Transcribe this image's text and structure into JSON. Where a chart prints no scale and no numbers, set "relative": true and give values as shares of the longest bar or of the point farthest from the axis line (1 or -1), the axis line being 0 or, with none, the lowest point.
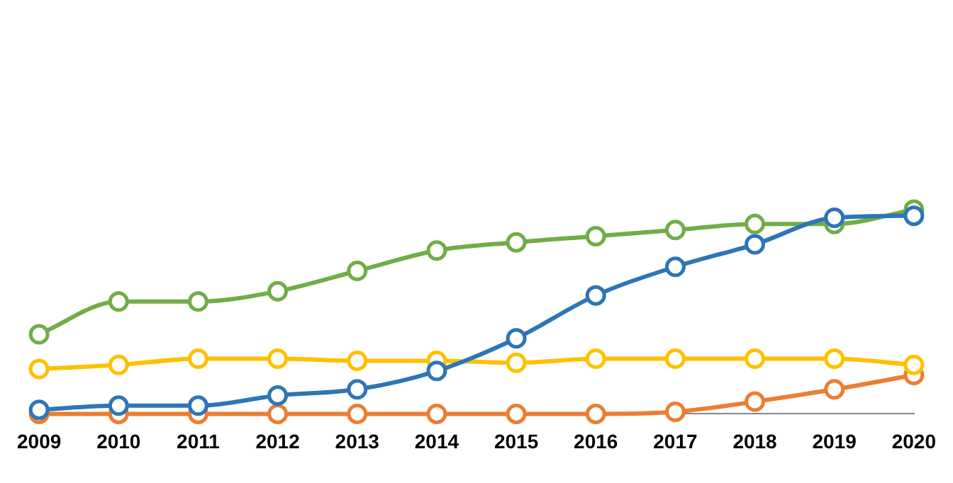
{
  "chart_data": {
    "type": "line",
    "relative": true,
    "categories": [
      "2009",
      "2010",
      "2011",
      "2012",
      "2013",
      "2014",
      "2015",
      "2016",
      "2017",
      "2018",
      "2019",
      "2020"
    ],
    "series": [
      {
        "color": "#2e75b6",
        "values": [
          0.02,
          0.04,
          0.04,
          0.09,
          0.12,
          0.21,
          0.37,
          0.58,
          0.72,
          0.83,
          0.96,
          0.97
        ]
      },
      {
        "color": "#70ad47",
        "values": [
          0.39,
          0.55,
          0.55,
          0.6,
          0.7,
          0.8,
          0.84,
          0.87,
          0.9,
          0.93,
          0.93,
          1
        ]
      },
      {
        "color": "#ffc000",
        "values": [
          0.22,
          0.24,
          0.27,
          0.27,
          0.26,
          0.26,
          0.25,
          0.27,
          0.27,
          0.27,
          0.27,
          0.24
        ]
      },
      {
        "color": "#ed7d31",
        "values": [
          0,
          0,
          0,
          0,
          0,
          0,
          0,
          0,
          0.01,
          0.06,
          0.12,
          0.19
        ]
      }
    ],
    "grid": false,
    "legend": false,
    "marker": "circle",
    "line_style": "solid"
  }
}
